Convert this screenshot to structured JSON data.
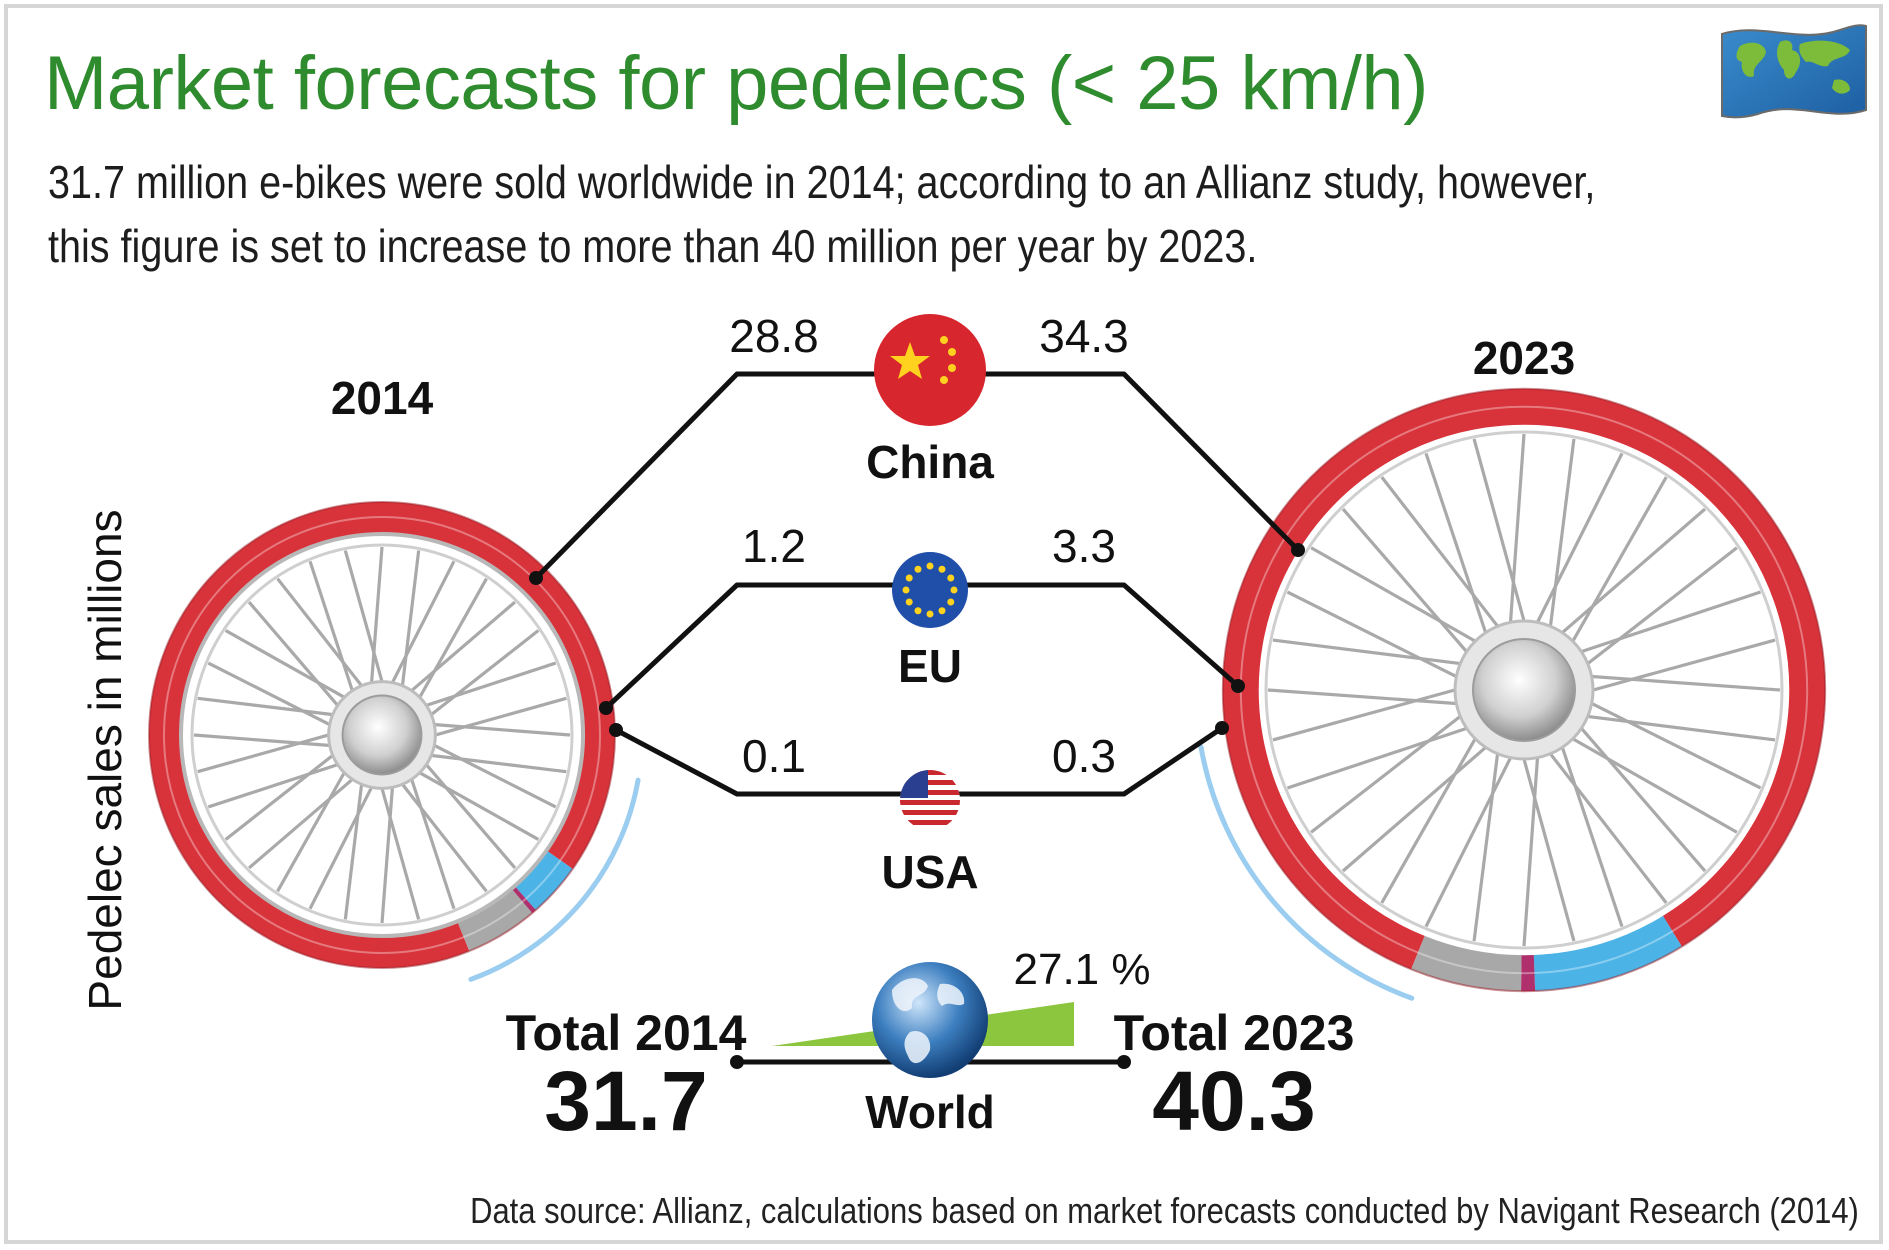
{
  "title": "Market forecasts for pedelecs (< 25 km/h)",
  "subtitle_lines": [
    "31.7 million e-bikes were sold worldwide in 2014; according to an Allianz study, however,",
    "this figure is set to increase to more than 40 million per year by 2023."
  ],
  "source": "Data source: Allianz, calculations based on market forecasts conducted by Navigant Research (2014)",
  "icons": {
    "world_flag": "world-map-flag-icon",
    "china": "china-flag-icon",
    "eu": "eu-flag-icon",
    "usa": "usa-flag-icon",
    "globe": "globe-icon",
    "wheel": "bicycle-wheel-icon"
  },
  "colors": {
    "title": "#2e8b2e",
    "china": "#d8323a",
    "eu": "#4bb3e6",
    "usa": "#b0306e",
    "rest": "#a8a8a8",
    "growth": "#8cc63f"
  },
  "chart_data": {
    "type": "comparison",
    "ylabel": "Pedelec sales in millions",
    "years": [
      "2014",
      "2023"
    ],
    "series": [
      {
        "name": "China",
        "values": [
          28.8,
          34.3
        ]
      },
      {
        "name": "EU",
        "values": [
          1.2,
          3.3
        ]
      },
      {
        "name": "USA",
        "values": [
          0.1,
          0.3
        ]
      }
    ],
    "totals": {
      "name": "World",
      "label_2014": "Total 2014",
      "label_2023": "Total 2023",
      "values": [
        31.7,
        40.3
      ],
      "growth_label": "27.1 %"
    },
    "value_labels": {
      "China": [
        "28.8",
        "34.3"
      ],
      "EU": [
        "1.2",
        "3.3"
      ],
      "USA": [
        "0.1",
        "0.3"
      ],
      "World": [
        "31.7",
        "40.3"
      ]
    }
  }
}
